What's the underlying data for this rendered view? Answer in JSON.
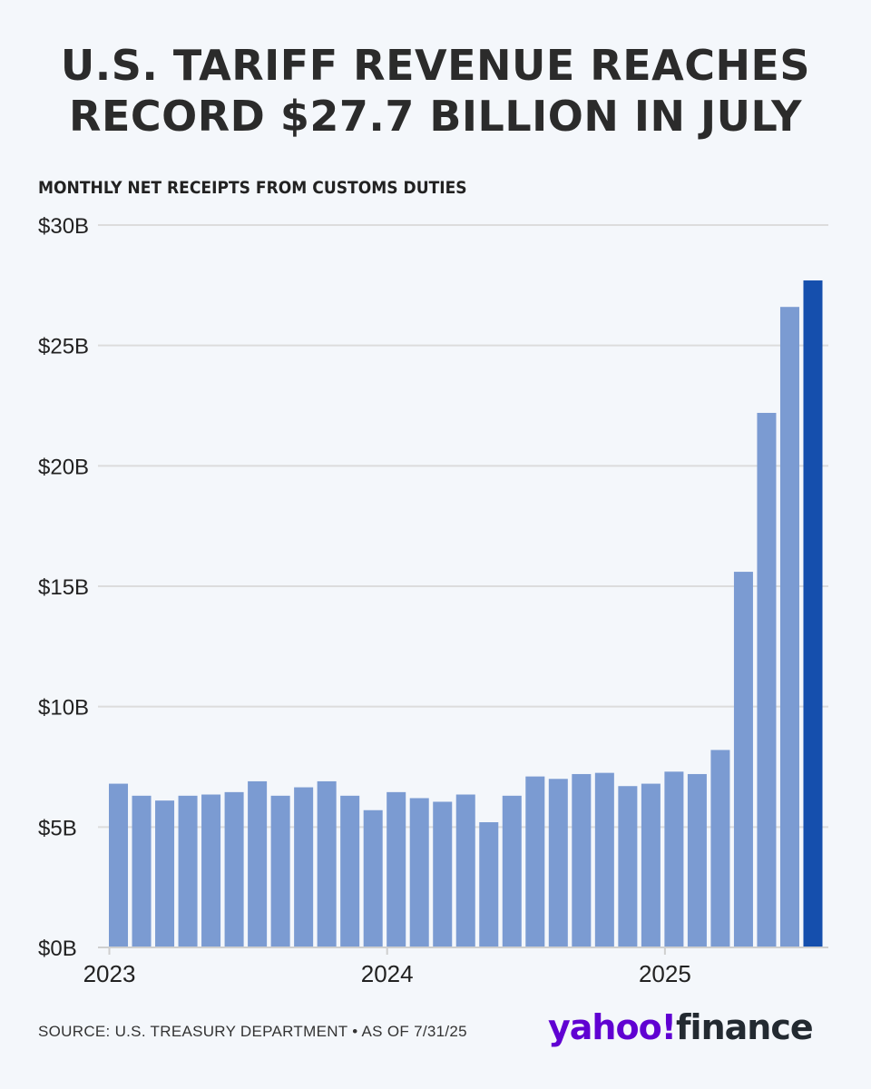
{
  "title_line1": "U.S. TARIFF REVENUE REACHES",
  "title_line2": "RECORD $27.7 BILLION IN JULY",
  "source": "SOURCE: U.S. TREASURY DEPARTMENT • AS OF 7/31/25",
  "logo": {
    "part1": "yahoo!",
    "part2": "finance"
  },
  "colors": {
    "bar": "#7b9bd2",
    "highlight": "#154fad",
    "grid": "#dcdcdc",
    "background": "#f4f7fb"
  },
  "chart_data": {
    "type": "bar",
    "title": "MONTHLY NET RECEIPTS FROM CUSTOMS DUTIES",
    "xlabel": "",
    "ylabel": "",
    "ylim": [
      0,
      30
    ],
    "yticks": [
      0,
      5,
      10,
      15,
      20,
      25,
      30
    ],
    "ytick_labels": [
      "$0B",
      "$5B",
      "$10B",
      "$15B",
      "$20B",
      "$25B",
      "$30B"
    ],
    "xtick_labels": [
      {
        "label": "2023",
        "index": 0
      },
      {
        "label": "2024",
        "index": 12
      },
      {
        "label": "2025",
        "index": 24
      }
    ],
    "grid": true,
    "categories": [
      "2023-01",
      "2023-02",
      "2023-03",
      "2023-04",
      "2023-05",
      "2023-06",
      "2023-07",
      "2023-08",
      "2023-09",
      "2023-10",
      "2023-11",
      "2023-12",
      "2024-01",
      "2024-02",
      "2024-03",
      "2024-04",
      "2024-05",
      "2024-06",
      "2024-07",
      "2024-08",
      "2024-09",
      "2024-10",
      "2024-11",
      "2024-12",
      "2025-01",
      "2025-02",
      "2025-03",
      "2025-04",
      "2025-05",
      "2025-06",
      "2025-07"
    ],
    "values": [
      6.8,
      6.3,
      6.1,
      6.3,
      6.35,
      6.45,
      6.9,
      6.3,
      6.65,
      6.9,
      6.3,
      5.7,
      6.45,
      6.2,
      6.05,
      6.35,
      5.2,
      6.3,
      7.1,
      7.0,
      7.2,
      7.25,
      6.7,
      6.8,
      7.3,
      7.2,
      8.2,
      15.6,
      22.2,
      26.6,
      27.7
    ],
    "highlight_index": 30
  }
}
